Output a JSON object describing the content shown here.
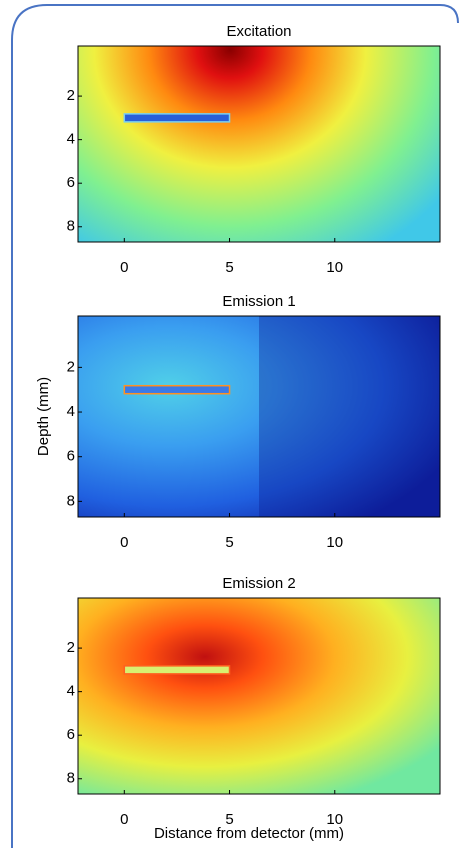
{
  "chart_data": [
    {
      "type": "heatmap",
      "title": "Excitation",
      "xlim": [
        -2.2,
        15
      ],
      "ylim": [
        -0.3,
        8.7
      ],
      "y_inverted": true,
      "xticks": [
        0,
        5,
        10
      ],
      "yticks": [
        2,
        4,
        6,
        8
      ]
    },
    {
      "type": "heatmap",
      "title": "Emission 1",
      "ylabel": "Depth (mm)",
      "xlim": [
        -2.2,
        15
      ],
      "ylim": [
        -0.3,
        8.7
      ],
      "y_inverted": true,
      "xticks": [
        0,
        5,
        10
      ],
      "yticks": [
        2,
        4,
        6,
        8
      ]
    },
    {
      "type": "heatmap",
      "title": "Emission 2",
      "xlabel": "Distance from detector (mm)",
      "xlim": [
        -2.2,
        15
      ],
      "ylim": [
        -0.3,
        8.7
      ],
      "y_inverted": true,
      "xticks": [
        0,
        5,
        10
      ],
      "yticks": [
        2,
        4,
        6,
        8
      ]
    }
  ]
}
